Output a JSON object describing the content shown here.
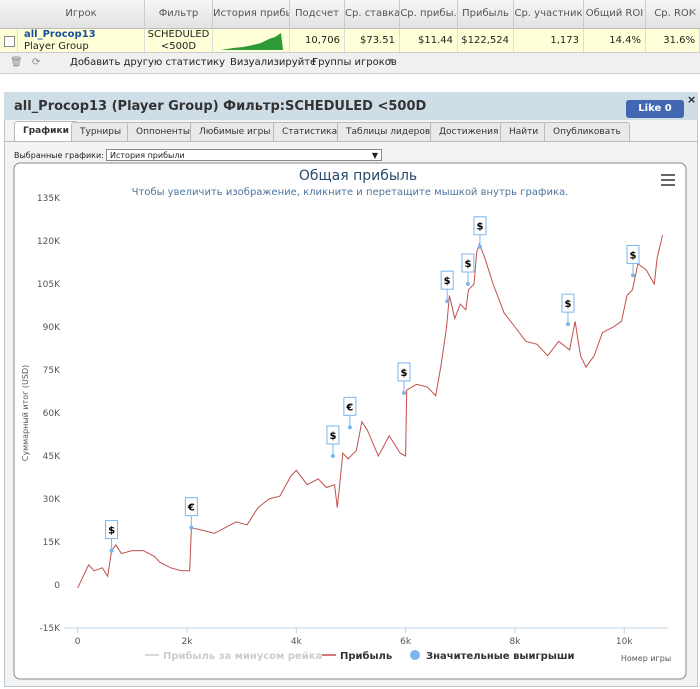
{
  "table": {
    "headers": [
      "Игрок",
      "Фильтр",
      "История прибы",
      "Подсчет",
      "Ср. ставка",
      "Ср. прибы.",
      "Прибыль",
      "Ср. участник",
      "Общий ROI",
      "Ср. ROI"
    ],
    "row": {
      "player": "all_Procop13",
      "group": "Player Group",
      "filter": "SCHEDULED <500D",
      "count": "10,706",
      "avg_stake": "$73.51",
      "avg_profit": "$11.44",
      "profit": "$122,524",
      "avg_entrants": "1,173",
      "total_roi": "14.4%",
      "avg_roi": "31.6%"
    }
  },
  "toolbar": {
    "add_stat": "Добавить другую статистику",
    "visualize": "Визуализируйте",
    "groups": "Группы игроков"
  },
  "panel": {
    "title": "all_Procop13 (Player Group) Фильтр:SCHEDULED <500D",
    "like": "Like",
    "like_count": "0",
    "tabs": [
      "Графики",
      "Турниры",
      "Оппоненты",
      "Любимые игры",
      "Статистика",
      "Таблицы лидеров",
      "Достижения",
      "Найти",
      "Опубликовать"
    ],
    "selector_label": "Выбранные графики:",
    "selector_value": "История прибыли"
  },
  "chart_data": {
    "type": "line",
    "title": "Общая прибыль",
    "subtitle": "Чтобы увеличить изображение, кликните и перетащите мышкой внутрь графика.",
    "x_label": "Номер игры",
    "y_label": "Суммарный итог (USD)",
    "xlim": [
      -250,
      10800
    ],
    "xticks": [
      0,
      {
        "value": 2000,
        "label": "2k"
      },
      {
        "value": 4000,
        "label": "4k"
      },
      {
        "value": 6000,
        "label": "6k"
      },
      {
        "value": 8000,
        "label": "8k"
      },
      {
        "value": 10000,
        "label": "10k"
      }
    ],
    "ylim": [
      -15000,
      135000
    ],
    "yticks": [
      {
        "value": -15000,
        "label": "-15K"
      },
      0,
      {
        "value": 15000,
        "label": "15K"
      },
      {
        "value": 30000,
        "label": "30K"
      },
      {
        "value": 45000,
        "label": "45K"
      },
      {
        "value": 60000,
        "label": "60K"
      },
      {
        "value": 75000,
        "label": "75K"
      },
      {
        "value": 90000,
        "label": "90K"
      },
      {
        "value": 105000,
        "label": "105K"
      },
      {
        "value": 120000,
        "label": "120K"
      },
      {
        "value": 135000,
        "label": "135K"
      }
    ],
    "grid": false,
    "series": [
      {
        "name": "Прибыль за минусом рейка",
        "color": "#cccccc",
        "visible": false
      },
      {
        "name": "Прибыль",
        "color": "#c0504d",
        "x": [
          0,
          100,
          200,
          300,
          450,
          550,
          620,
          700,
          800,
          1000,
          1200,
          1400,
          1500,
          1700,
          1900,
          2050,
          2080,
          2300,
          2500,
          2700,
          2900,
          3100,
          3300,
          3500,
          3700,
          3900,
          4000,
          4200,
          4400,
          4550,
          4700,
          4750,
          4800,
          4850,
          4950,
          5100,
          5200,
          5300,
          5500,
          5700,
          5900,
          6000,
          6020,
          6200,
          6400,
          6550,
          6650,
          6750,
          6800,
          6900,
          7000,
          7100,
          7150,
          7250,
          7300,
          7350,
          7450,
          7600,
          7800,
          8000,
          8200,
          8400,
          8600,
          8800,
          9000,
          9100,
          9200,
          9300,
          9450,
          9600,
          9800,
          9950,
          10050,
          10150,
          10250,
          10400,
          10550,
          10600,
          10700
        ],
        "values": [
          -1000,
          3000,
          7000,
          5000,
          6000,
          3000,
          12000,
          14000,
          11000,
          12000,
          12000,
          10000,
          8000,
          6000,
          5000,
          5000,
          20000,
          19000,
          18000,
          20000,
          22000,
          21000,
          27000,
          30000,
          31000,
          38000,
          40000,
          35000,
          37000,
          34000,
          35000,
          27000,
          36000,
          46000,
          44000,
          47000,
          57000,
          54000,
          45000,
          52000,
          46000,
          45000,
          68000,
          70000,
          69000,
          66000,
          77000,
          90000,
          101000,
          93000,
          98000,
          96000,
          103000,
          105000,
          116000,
          119000,
          114000,
          105000,
          95000,
          90000,
          85000,
          84000,
          80000,
          85000,
          82000,
          92000,
          80000,
          76000,
          80000,
          88000,
          90000,
          92000,
          101000,
          103000,
          112000,
          110000,
          105000,
          114000,
          122000
        ]
      },
      {
        "name": "Значительные выигрыши",
        "color": "#7cb5ec",
        "x": [
          620,
          2080,
          4670,
          4980,
          5970,
          6760,
          7140,
          7360,
          8970,
          10160
        ],
        "values": [
          12000,
          20000,
          45000,
          55000,
          67000,
          99000,
          105000,
          118000,
          91000,
          108000
        ],
        "labels": [
          "$",
          "€",
          "$",
          "€",
          "$",
          "$",
          "$",
          "$",
          "$",
          "$"
        ]
      }
    ]
  }
}
